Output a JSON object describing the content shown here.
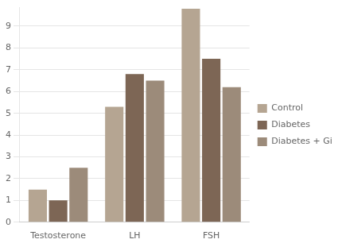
{
  "chart_data": {
    "type": "bar",
    "categories": [
      "Testosterone",
      "LH",
      "FSH"
    ],
    "series": [
      {
        "name": "Control",
        "color": "#b5a592",
        "values": [
          1.5,
          5.3,
          9.8
        ]
      },
      {
        "name": "Diabetes",
        "color": "#7d6655",
        "values": [
          1.0,
          6.8,
          7.5
        ]
      },
      {
        "name": "Diabetes + Ginger",
        "color": "#9c8b7a",
        "values": [
          2.5,
          6.5,
          6.2
        ]
      }
    ],
    "ylim": [
      0,
      9.85
    ],
    "yticks": [
      0,
      1,
      2,
      3,
      4,
      5,
      6,
      7,
      8,
      9
    ],
    "grid": true,
    "legend": "right"
  }
}
